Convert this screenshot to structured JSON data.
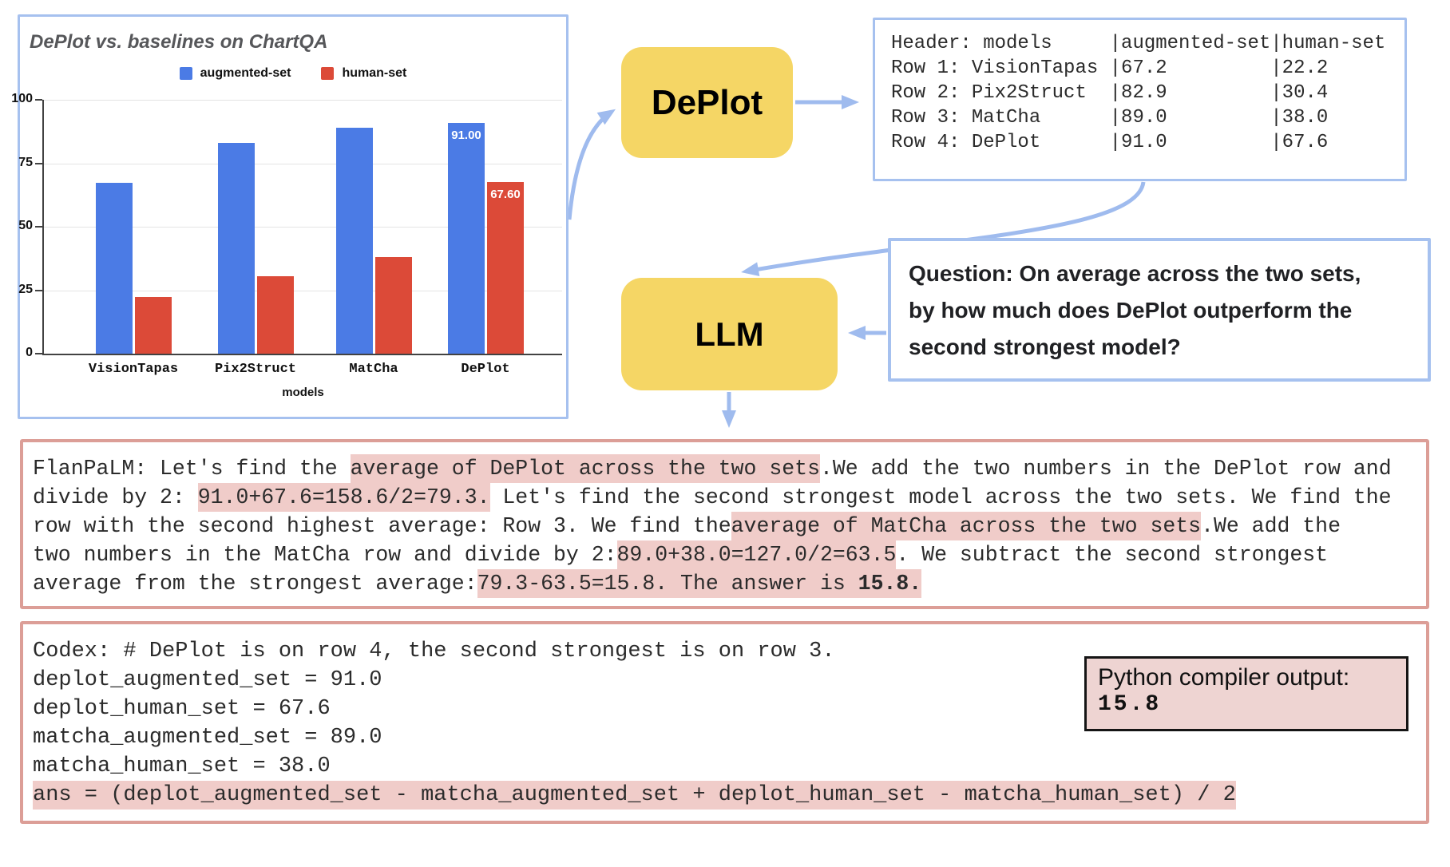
{
  "chart_data": {
    "type": "bar",
    "title": "DePlot vs. baselines on ChartQA",
    "categories": [
      "VisionTapas",
      "Pix2Struct",
      "MatCha",
      "DePlot"
    ],
    "series": [
      {
        "name": "augmented-set",
        "color": "#4b7be5",
        "values": [
          67.2,
          82.9,
          89.0,
          91.0
        ],
        "data_labels": [
          "",
          "",
          "",
          "91.00"
        ]
      },
      {
        "name": "human-set",
        "color": "#dc4a38",
        "values": [
          22.2,
          30.4,
          38.0,
          67.6
        ],
        "data_labels": [
          "",
          "",
          "",
          "67.60"
        ]
      }
    ],
    "xlabel": "models",
    "ylim": [
      0,
      100
    ],
    "yticks": [
      0,
      25,
      50,
      75,
      100
    ],
    "grid": true,
    "legend_position": "top"
  },
  "pipeline": {
    "deplot_label": "DePlot",
    "llm_label": "LLM"
  },
  "table_panel": {
    "lines": [
      "Header: models     |augmented-set|human-set",
      "Row 1: VisionTapas |67.2         |22.2",
      "Row 2: Pix2Struct  |82.9         |30.4",
      "Row 3: MatCha      |89.0         |38.0",
      "Row 4: DePlot      |91.0         |67.6"
    ]
  },
  "question_panel": {
    "lines": [
      "Question: On average across the two sets,",
      "by how much does DePlot outperform the",
      "second strongest model?"
    ]
  },
  "flanpalm_panel": {
    "lines": [
      [
        {
          "t": "FlanPaLM: Let's find the "
        },
        {
          "t": "average of DePlot across the two sets",
          "h": true
        },
        {
          "t": ".We add the two numbers in the DePlot row and"
        }
      ],
      [
        {
          "t": "divide by 2: "
        },
        {
          "t": "91.0+67.6=158.6/2=79.3.",
          "h": true
        },
        {
          "t": " Let's find the second strongest model across the two sets. We find the"
        }
      ],
      [
        {
          "t": "row with the second highest average: Row 3. We find the"
        },
        {
          "t": "average of MatCha across the two sets",
          "h": true
        },
        {
          "t": ".We add the"
        }
      ],
      [
        {
          "t": "two numbers in the MatCha row and divide by 2:"
        },
        {
          "t": "89.0+38.0=127.0/2=63.5",
          "h": true
        },
        {
          "t": ". We subtract the second strongest"
        }
      ],
      [
        {
          "t": "average from the strongest average:"
        },
        {
          "t": "79.3-63.5=15.8. The answer is ",
          "h": true
        },
        {
          "t": "15.8.",
          "h": true,
          "b": true
        }
      ]
    ]
  },
  "codex_panel": {
    "lines": [
      [
        {
          "t": "Codex: # DePlot is on row 4, the second strongest is on row 3."
        }
      ],
      [
        {
          "t": "deplot_augmented_set = 91.0"
        }
      ],
      [
        {
          "t": "deplot_human_set = 67.6"
        }
      ],
      [
        {
          "t": "matcha_augmented_set = 89.0"
        }
      ],
      [
        {
          "t": "matcha_human_set = 38.0"
        }
      ],
      [
        {
          "t": "ans = (deplot_augmented_set - matcha_augmented_set + deplot_human_set - matcha_human_set) / 2",
          "h": true
        }
      ]
    ]
  },
  "python_output": {
    "label": "Python compiler output:",
    "value": "15.8"
  },
  "colors": {
    "box_border_blue": "#a6c1ef",
    "arrow_blue": "#9fbbee",
    "pipeline_yellow": "#f5d665",
    "bar_blue": "#4b7be5",
    "bar_red": "#dc4a38",
    "pink_border": "#dc9e97",
    "highlight_pink": "#f0ccc9",
    "python_box_pink": "#eed4d2"
  }
}
